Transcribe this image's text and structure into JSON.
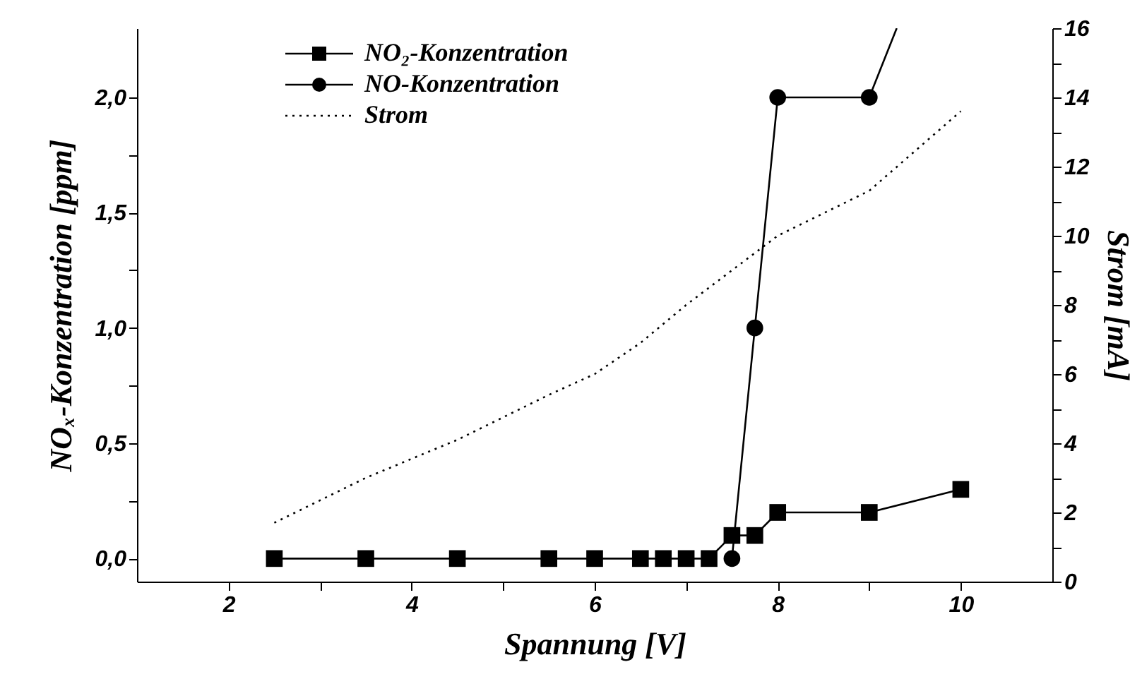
{
  "chart_data": {
    "type": "line",
    "xlabel": "Spannung [V]",
    "ylabel": "NOₓ-Konzentration [ppm]",
    "y2label": "Strom [mA]",
    "xlim": [
      1,
      11
    ],
    "xticks": [
      2,
      {
        "value": 3,
        "label": null
      },
      4,
      {
        "value": 5,
        "label": null
      },
      6,
      {
        "value": 7,
        "label": null
      },
      8,
      {
        "value": 9,
        "label": null
      },
      10
    ],
    "ylim": [
      -0.1,
      2.3
    ],
    "yticks": [
      {
        "value": 0,
        "label": "0,0"
      },
      {
        "value": 0.25,
        "label": null
      },
      {
        "value": 0.5,
        "label": "0,5"
      },
      {
        "value": 0.75,
        "label": null
      },
      {
        "value": 1,
        "label": "1,0"
      },
      {
        "value": 1.25,
        "label": null
      },
      {
        "value": 1.5,
        "label": "1,5"
      },
      {
        "value": 1.75,
        "label": null
      },
      {
        "value": 2,
        "label": "2,0"
      }
    ],
    "y2lim": [
      0,
      16
    ],
    "y2ticks": [
      0,
      {
        "value": 1,
        "label": null
      },
      2,
      {
        "value": 3,
        "label": null
      },
      4,
      {
        "value": 5,
        "label": null
      },
      6,
      {
        "value": 7,
        "label": null
      },
      8,
      {
        "value": 9,
        "label": null
      },
      10,
      {
        "value": 11,
        "label": null
      },
      12,
      {
        "value": 13,
        "label": null
      },
      14,
      {
        "value": 15,
        "label": null
      },
      16
    ],
    "grid": false,
    "legend": "top left",
    "series": [
      {
        "name": "NO₂-Konzentration",
        "color": "#000000",
        "marker": "square",
        "line_style": "solid",
        "x": [
          2.5,
          3.5,
          4.5,
          5.5,
          6,
          6.5,
          6.75,
          7,
          7.25,
          7.5,
          7.75,
          8,
          9,
          10
        ],
        "values": [
          0,
          0,
          0,
          0,
          0,
          0,
          0,
          0,
          0,
          0.1,
          0.1,
          0.2,
          0.2,
          0.3
        ]
      },
      {
        "name": "NO-Konzentration",
        "color": "#000000",
        "marker": "circle",
        "line_style": "solid",
        "x": [
          7.5,
          7.75,
          8,
          9
        ],
        "values": [
          0,
          1.0,
          2.0,
          2.0
        ]
      },
      {
        "type": "line",
        "color": "#000000",
        "marker": "none",
        "line_style": "solid",
        "x": [
          9,
          9.3
        ],
        "values": [
          2.0,
          2.3
        ]
      },
      {
        "name": "Strom",
        "color": "#000000",
        "marker": "none",
        "line_style": "dotted",
        "axis": "y2",
        "x": [
          2.5,
          3.5,
          4.5,
          5.5,
          6,
          6.5,
          7,
          7.5,
          8,
          9,
          10
        ],
        "values": [
          1.7,
          3.0,
          4.1,
          5.4,
          6.0,
          6.9,
          8.0,
          9.0,
          10.0,
          11.3,
          13.6
        ]
      }
    ]
  }
}
